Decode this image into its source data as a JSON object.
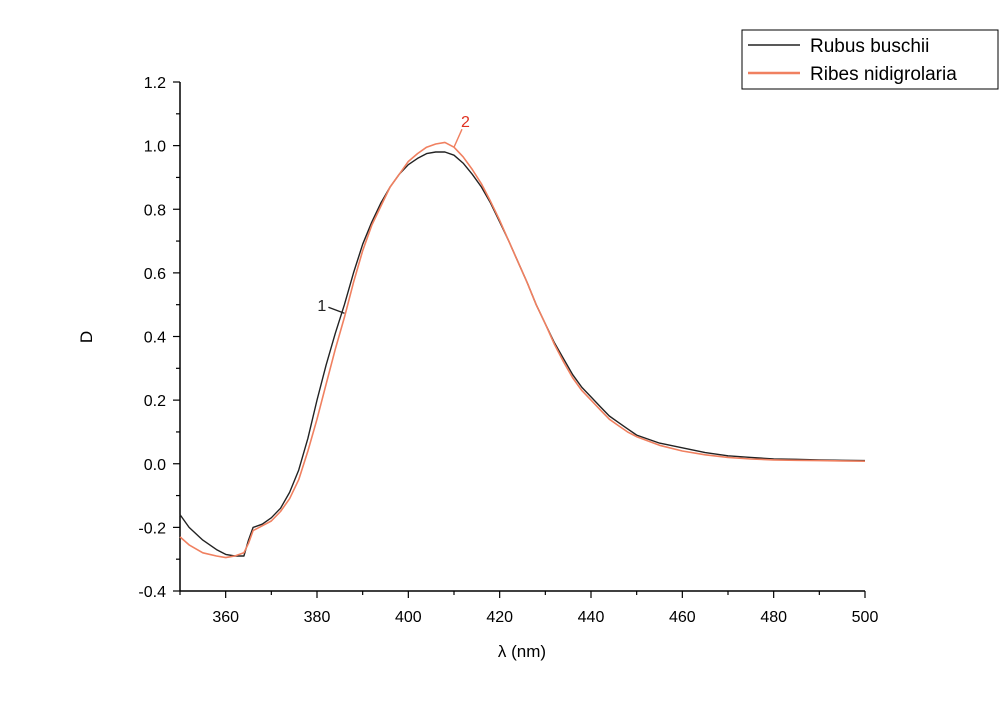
{
  "chart_data": {
    "type": "line",
    "title": "",
    "xlabel": "λ (nm)",
    "ylabel": "D",
    "xlim": [
      350,
      500
    ],
    "ylim": [
      -0.4,
      1.2
    ],
    "xticks": [
      360,
      380,
      400,
      420,
      440,
      460,
      480,
      500
    ],
    "yticks": [
      -0.4,
      -0.2,
      0.0,
      0.2,
      0.4,
      0.6,
      0.8,
      1.0,
      1.2
    ],
    "xtick_labels": [
      "360",
      "380",
      "400",
      "420",
      "440",
      "460",
      "480",
      "500"
    ],
    "ytick_labels": [
      "-0.4",
      "-0.2",
      "0.0",
      "0.2",
      "0.4",
      "0.6",
      "0.8",
      "1.0",
      "1.2"
    ],
    "grid": false,
    "legend_position": "top-right",
    "series": [
      {
        "name": "Rubus buschii",
        "color": "#222222",
        "label": "1",
        "x": [
          350,
          352,
          355,
          358,
          360,
          362,
          364,
          365,
          366,
          368,
          370,
          372,
          374,
          376,
          378,
          380,
          382,
          384,
          386,
          388,
          390,
          392,
          394,
          396,
          398,
          400,
          402,
          404,
          406,
          408,
          410,
          412,
          414,
          416,
          418,
          420,
          422,
          424,
          426,
          428,
          430,
          432,
          434,
          436,
          438,
          440,
          442,
          444,
          446,
          448,
          450,
          455,
          460,
          465,
          470,
          475,
          480,
          485,
          490,
          495,
          500
        ],
        "y": [
          -0.16,
          -0.2,
          -0.24,
          -0.27,
          -0.285,
          -0.29,
          -0.29,
          -0.24,
          -0.2,
          -0.19,
          -0.17,
          -0.14,
          -0.09,
          -0.02,
          0.08,
          0.2,
          0.31,
          0.41,
          0.5,
          0.6,
          0.69,
          0.76,
          0.82,
          0.87,
          0.91,
          0.94,
          0.96,
          0.975,
          0.98,
          0.98,
          0.97,
          0.945,
          0.91,
          0.87,
          0.82,
          0.76,
          0.7,
          0.635,
          0.57,
          0.5,
          0.44,
          0.38,
          0.33,
          0.28,
          0.24,
          0.21,
          0.18,
          0.15,
          0.13,
          0.11,
          0.09,
          0.065,
          0.05,
          0.035,
          0.025,
          0.02,
          0.015,
          0.014,
          0.012,
          0.011,
          0.01
        ]
      },
      {
        "name": "Ribes nidigrolaria",
        "color": "#f08060",
        "label": "2",
        "x": [
          350,
          352,
          355,
          358,
          360,
          362,
          364,
          365,
          366,
          368,
          370,
          372,
          374,
          376,
          378,
          380,
          382,
          384,
          386,
          388,
          390,
          392,
          394,
          396,
          398,
          400,
          402,
          404,
          406,
          408,
          410,
          412,
          414,
          416,
          418,
          420,
          422,
          424,
          426,
          428,
          430,
          432,
          434,
          436,
          438,
          440,
          442,
          444,
          446,
          448,
          450,
          455,
          460,
          465,
          470,
          475,
          480,
          485,
          490,
          495,
          500
        ],
        "y": [
          -0.23,
          -0.255,
          -0.28,
          -0.29,
          -0.295,
          -0.29,
          -0.28,
          -0.25,
          -0.21,
          -0.195,
          -0.18,
          -0.15,
          -0.11,
          -0.05,
          0.04,
          0.14,
          0.25,
          0.36,
          0.46,
          0.57,
          0.67,
          0.75,
          0.81,
          0.87,
          0.91,
          0.95,
          0.975,
          0.995,
          1.005,
          1.01,
          0.995,
          0.965,
          0.925,
          0.88,
          0.825,
          0.765,
          0.7,
          0.635,
          0.57,
          0.5,
          0.44,
          0.375,
          0.32,
          0.27,
          0.23,
          0.2,
          0.17,
          0.14,
          0.12,
          0.1,
          0.085,
          0.058,
          0.04,
          0.028,
          0.02,
          0.015,
          0.012,
          0.011,
          0.01,
          0.009,
          0.008
        ]
      }
    ]
  }
}
